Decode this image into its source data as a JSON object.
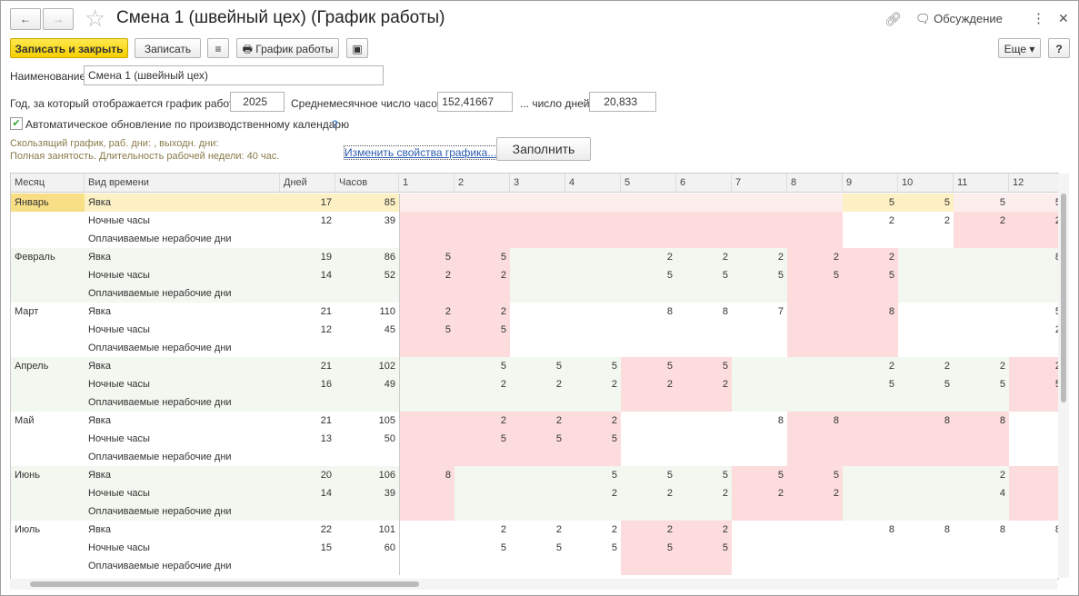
{
  "header": {
    "title": "Смена 1 (швейный цех) (График работы)",
    "discussion": "Обсуждение"
  },
  "toolbar": {
    "save_close": "Записать и закрыть",
    "save": "Записать",
    "schedule": "График работы",
    "more": "Еще",
    "help": "?"
  },
  "form": {
    "name_label": "Наименование:",
    "name_value": "Смена 1 (швейный цех)",
    "year_label": "Год, за который отображается график работы:",
    "year_value": "2025",
    "avg_hours_label": "Среднемесячное число часов:",
    "avg_hours_value": "152,41667",
    "avg_days_label": "... число дней:",
    "avg_days_value": "20,833",
    "auto_update_label": "Автоматическое обновление по производственному календарю",
    "auto_update_help": "?",
    "info_line1": "Скользящий график, раб. дни: , выходн. дни:",
    "info_line2": "Полная занятость. Длительность рабочей недели: 40 час.",
    "change_link": "Изменить свойства графика...",
    "fill_button": "Заполнить"
  },
  "table": {
    "columns": [
      "Месяц",
      "Вид времени",
      "Дней",
      "Часов",
      "1",
      "2",
      "3",
      "4",
      "5",
      "6",
      "7",
      "8",
      "9",
      "10",
      "11",
      "12"
    ],
    "rows": [
      [
        "Январь",
        "Явка",
        "17",
        "85",
        null,
        null,
        null,
        null,
        null,
        null,
        null,
        null,
        "5",
        "5",
        "5",
        "5"
      ],
      [
        null,
        "Ночные часы",
        "12",
        "39",
        null,
        null,
        null,
        null,
        null,
        null,
        null,
        null,
        "2",
        "2",
        "2",
        "2"
      ],
      [
        null,
        "Оплачиваемые нерабочие дни",
        null,
        null,
        null,
        null,
        null,
        null,
        null,
        null,
        null,
        null,
        null,
        null,
        null,
        null
      ],
      [
        "Февраль",
        "Явка",
        "19",
        "86",
        "5",
        "5",
        null,
        null,
        "2",
        "2",
        "2",
        "2",
        "2",
        null,
        null,
        "8"
      ],
      [
        null,
        "Ночные часы",
        "14",
        "52",
        "2",
        "2",
        null,
        null,
        "5",
        "5",
        "5",
        "5",
        "5",
        null,
        null,
        null
      ],
      [
        null,
        "Оплачиваемые нерабочие дни",
        null,
        null,
        null,
        null,
        null,
        null,
        null,
        null,
        null,
        null,
        null,
        null,
        null,
        null
      ],
      [
        "Март",
        "Явка",
        "21",
        "110",
        "2",
        "2",
        null,
        null,
        "8",
        "8",
        "7",
        null,
        "8",
        null,
        null,
        "5"
      ],
      [
        null,
        "Ночные часы",
        "12",
        "45",
        "5",
        "5",
        null,
        null,
        null,
        null,
        null,
        null,
        null,
        null,
        null,
        "2"
      ],
      [
        null,
        "Оплачиваемые нерабочие дни",
        null,
        null,
        null,
        null,
        null,
        null,
        null,
        null,
        null,
        null,
        null,
        null,
        null,
        null
      ],
      [
        "Апрель",
        "Явка",
        "21",
        "102",
        null,
        "5",
        "5",
        "5",
        "5",
        "5",
        null,
        null,
        "2",
        "2",
        "2",
        "2"
      ],
      [
        null,
        "Ночные часы",
        "16",
        "49",
        null,
        "2",
        "2",
        "2",
        "2",
        "2",
        null,
        null,
        "5",
        "5",
        "5",
        "5"
      ],
      [
        null,
        "Оплачиваемые нерабочие дни",
        null,
        null,
        null,
        null,
        null,
        null,
        null,
        null,
        null,
        null,
        null,
        null,
        null,
        null
      ],
      [
        "Май",
        "Явка",
        "21",
        "105",
        null,
        "2",
        "2",
        "2",
        null,
        null,
        "8",
        "8",
        null,
        "8",
        "8",
        null
      ],
      [
        null,
        "Ночные часы",
        "13",
        "50",
        null,
        "5",
        "5",
        "5",
        null,
        null,
        null,
        null,
        null,
        null,
        null,
        null
      ],
      [
        null,
        "Оплачиваемые нерабочие дни",
        null,
        null,
        null,
        null,
        null,
        null,
        null,
        null,
        null,
        null,
        null,
        null,
        null,
        null
      ],
      [
        "Июнь",
        "Явка",
        "20",
        "106",
        "8",
        null,
        null,
        "5",
        "5",
        "5",
        "5",
        "5",
        null,
        null,
        "2",
        null
      ],
      [
        null,
        "Ночные часы",
        "14",
        "39",
        null,
        null,
        null,
        "2",
        "2",
        "2",
        "2",
        "2",
        null,
        null,
        "4",
        null
      ],
      [
        null,
        "Оплачиваемые нерабочие дни",
        null,
        null,
        null,
        null,
        null,
        null,
        null,
        null,
        null,
        null,
        null,
        null,
        null,
        null
      ],
      [
        "Июль",
        "Явка",
        "22",
        "101",
        null,
        "2",
        "2",
        "2",
        "2",
        "2",
        null,
        null,
        "8",
        "8",
        "8",
        "8"
      ],
      [
        null,
        "Ночные часы",
        "15",
        "60",
        null,
        "5",
        "5",
        "5",
        "5",
        "5",
        null,
        null,
        null,
        null,
        null,
        null
      ],
      [
        null,
        "Оплачиваемые нерабочие дни",
        null,
        null,
        null,
        null,
        null,
        null,
        null,
        null,
        null,
        null,
        null,
        null,
        null,
        null
      ]
    ]
  }
}
